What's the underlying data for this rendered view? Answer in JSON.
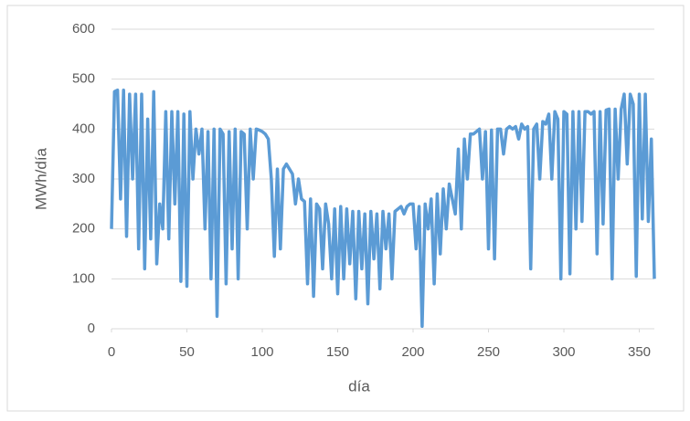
{
  "chart_data": {
    "type": "line",
    "x_label": "día",
    "y_label": "MWh/día",
    "x": [
      0,
      2,
      4,
      6,
      8,
      10,
      12,
      14,
      16,
      18,
      20,
      22,
      24,
      26,
      28,
      30,
      32,
      34,
      36,
      38,
      40,
      42,
      44,
      46,
      48,
      50,
      52,
      54,
      56,
      58,
      60,
      62,
      64,
      66,
      68,
      70,
      72,
      74,
      76,
      78,
      80,
      82,
      84,
      86,
      88,
      90,
      92,
      94,
      96,
      98,
      100,
      102,
      104,
      106,
      108,
      110,
      112,
      114,
      116,
      118,
      120,
      122,
      124,
      126,
      128,
      130,
      132,
      134,
      136,
      138,
      140,
      142,
      144,
      146,
      148,
      150,
      152,
      154,
      156,
      158,
      160,
      162,
      164,
      166,
      168,
      170,
      172,
      174,
      176,
      178,
      180,
      182,
      184,
      186,
      188,
      190,
      192,
      194,
      196,
      198,
      200,
      202,
      204,
      206,
      208,
      210,
      212,
      214,
      216,
      218,
      220,
      222,
      224,
      226,
      228,
      230,
      232,
      234,
      236,
      238,
      240,
      242,
      244,
      246,
      248,
      250,
      252,
      254,
      256,
      258,
      260,
      262,
      264,
      266,
      268,
      270,
      272,
      274,
      276,
      278,
      280,
      282,
      284,
      286,
      288,
      290,
      292,
      294,
      296,
      298,
      300,
      302,
      304,
      306,
      308,
      310,
      312,
      314,
      316,
      318,
      320,
      322,
      324,
      326,
      328,
      330,
      332,
      334,
      336,
      338,
      340,
      342,
      344,
      346,
      348,
      350,
      352,
      354,
      356,
      358,
      360
    ],
    "series": [
      {
        "color": "#5b9bd5",
        "values": [
          200,
          475,
          478,
          260,
          478,
          185,
          470,
          300,
          470,
          160,
          470,
          120,
          420,
          180,
          475,
          130,
          250,
          200,
          435,
          180,
          435,
          250,
          435,
          95,
          430,
          85,
          435,
          300,
          400,
          350,
          400,
          200,
          395,
          100,
          400,
          25,
          400,
          390,
          90,
          395,
          160,
          400,
          100,
          395,
          390,
          200,
          400,
          300,
          400,
          398,
          395,
          390,
          380,
          300,
          145,
          320,
          160,
          320,
          330,
          320,
          310,
          250,
          300,
          260,
          255,
          90,
          260,
          65,
          250,
          240,
          120,
          250,
          210,
          100,
          240,
          70,
          245,
          100,
          240,
          130,
          235,
          60,
          235,
          120,
          230,
          50,
          235,
          140,
          230,
          80,
          235,
          160,
          230,
          100,
          235,
          240,
          245,
          230,
          245,
          250,
          250,
          160,
          245,
          5,
          250,
          200,
          260,
          90,
          270,
          150,
          280,
          200,
          290,
          260,
          230,
          360,
          200,
          380,
          300,
          390,
          390,
          395,
          400,
          300,
          395,
          160,
          398,
          140,
          400,
          400,
          350,
          400,
          405,
          400,
          405,
          380,
          410,
          400,
          405,
          120,
          400,
          410,
          300,
          415,
          410,
          430,
          300,
          435,
          420,
          100,
          435,
          430,
          110,
          435,
          200,
          435,
          215,
          435,
          435,
          430,
          435,
          150,
          435,
          210,
          438,
          440,
          100,
          440,
          300,
          440,
          470,
          330,
          470,
          450,
          105,
          470,
          220,
          470,
          215,
          380,
          100
        ]
      }
    ],
    "xlim": [
      0,
      360
    ],
    "xticks": [
      0,
      50,
      100,
      150,
      200,
      250,
      300,
      350
    ],
    "ylim": [
      0,
      600
    ],
    "yticks": [
      0,
      100,
      200,
      300,
      400,
      500,
      600
    ],
    "grid": true
  }
}
